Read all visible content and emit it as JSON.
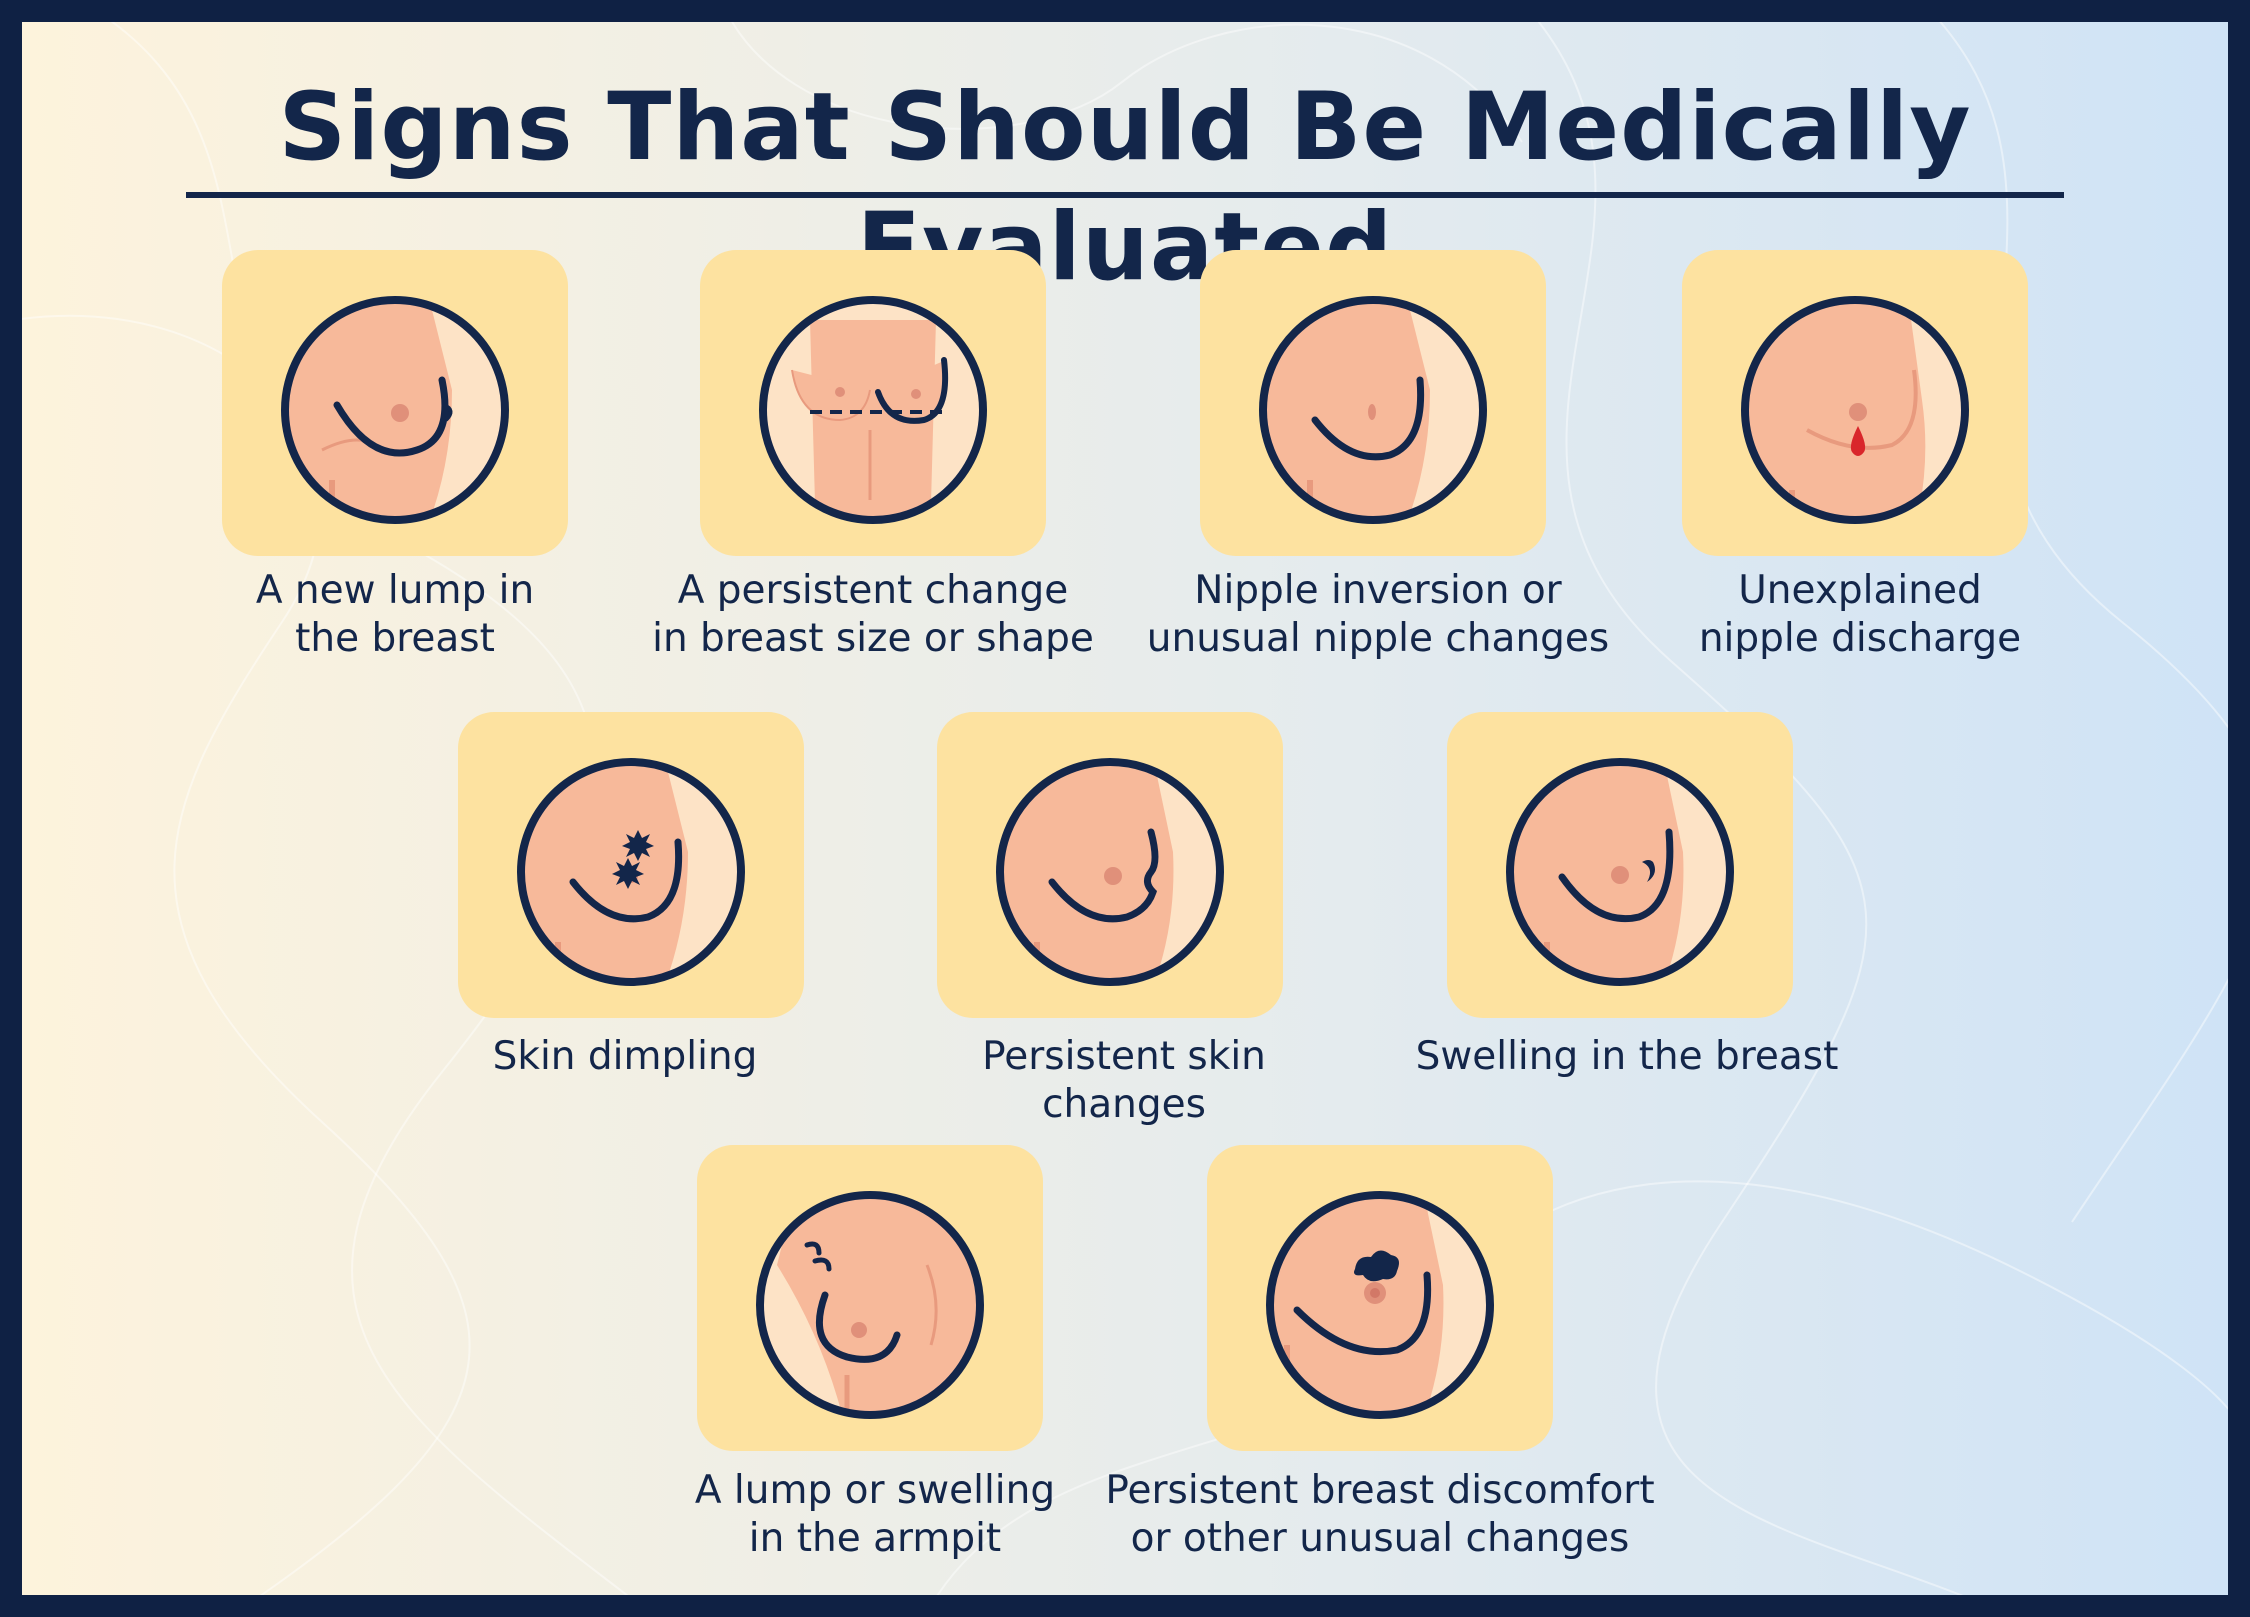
{
  "title": "Signs That Should Be Medically Evaluated",
  "colors": {
    "frame": "#0f2144",
    "text": "#13264a",
    "card": "#fde2a0",
    "skin": "#f7b99a",
    "skin_light": "#fde3c6",
    "areola": "#e0907a",
    "discharge": "#d9262b"
  },
  "signs": [
    {
      "line1": "A new lump in",
      "line2": "the breast",
      "icon": "breast-lump-icon"
    },
    {
      "line1": "A persistent change",
      "line2": "in breast size or shape",
      "icon": "breast-size-shape-icon"
    },
    {
      "line1": "Nipple inversion or",
      "line2": "unusual nipple changes",
      "icon": "nipple-inversion-icon"
    },
    {
      "line1": "Unexplained",
      "line2": "nipple discharge",
      "icon": "nipple-discharge-icon"
    },
    {
      "line1": "Skin dimpling",
      "line2": "",
      "icon": "skin-dimpling-icon"
    },
    {
      "line1": "Persistent skin",
      "line2": "changes",
      "icon": "skin-changes-icon"
    },
    {
      "line1": "Swelling in the breast",
      "line2": "",
      "icon": "breast-swelling-icon"
    },
    {
      "line1": "A lump or swelling",
      "line2": "in the armpit",
      "icon": "armpit-lump-icon"
    },
    {
      "line1": "Persistent breast discomfort",
      "line2": "or other unusual changes",
      "icon": "breast-discomfort-icon"
    }
  ]
}
